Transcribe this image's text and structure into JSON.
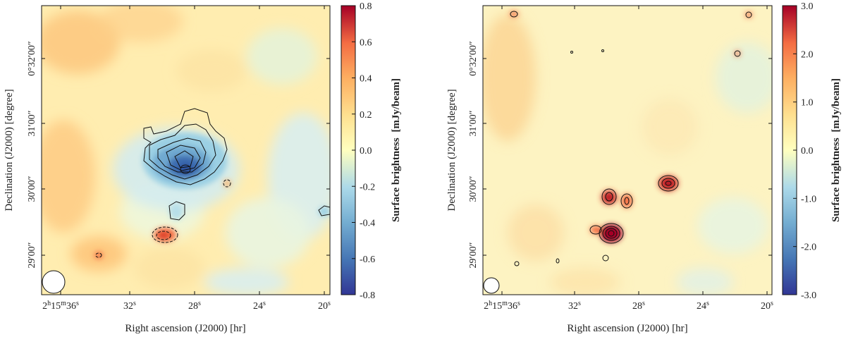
{
  "chart_data": [
    {
      "type": "heatmap",
      "name": "left-map",
      "xlabel": "Right ascension (J2000) [hr]",
      "ylabel": "Declination (J2000) [degree]",
      "x_ticks": [
        {
          "sup_h": "h",
          "sup_m": "m",
          "sup_s": "s",
          "h": "2",
          "m": "15",
          "s": "36",
          "label": "2h15m36s"
        },
        {
          "label": "32",
          "sup": "s"
        },
        {
          "label": "28",
          "sup": "s"
        },
        {
          "label": "24",
          "sup": "s"
        },
        {
          "label": "20",
          "sup": "s"
        }
      ],
      "y_ticks": [
        "0°32′00″",
        "31′00″",
        "30′00″",
        "29′00″"
      ],
      "y_tick_parts": [
        {
          "main": "0°32′00",
          "sec": "″"
        },
        {
          "main": "31′00",
          "sec": "″"
        },
        {
          "main": "30′00",
          "sec": "″"
        },
        {
          "main": "29′00",
          "sec": "″"
        }
      ],
      "colorbar": {
        "label": "Surface brightness",
        "unit": "[mJy/beam]",
        "range": [
          -0.8,
          0.8
        ],
        "ticks": [
          "0.8",
          "0.6",
          "0.4",
          "0.2",
          "0.0",
          "-0.2",
          "-0.4",
          "-0.6",
          "-0.8"
        ],
        "colormap": "RdYlBu_r"
      },
      "features": [
        "negative extended source near center",
        "compact positive source southwest",
        "beam ellipse lower-left"
      ]
    },
    {
      "type": "heatmap",
      "name": "right-map",
      "xlabel": "Right ascension (J2000) [hr]",
      "ylabel": "Declination (J2000) [degree]",
      "x_ticks": [
        {
          "label": "2h15m36s"
        },
        {
          "label": "32",
          "sup": "s"
        },
        {
          "label": "28",
          "sup": "s"
        },
        {
          "label": "24",
          "sup": "s"
        },
        {
          "label": "20",
          "sup": "s"
        }
      ],
      "y_ticks": [
        "0°32′00″",
        "31′00″",
        "30′00″",
        "29′00″"
      ],
      "colorbar": {
        "label": "Surface brightness",
        "unit": "[mJy/beam]",
        "range": [
          -3.0,
          3.0
        ],
        "ticks": [
          "3.0",
          "2.0",
          "1.0",
          "0.0",
          "-1.0",
          "-2.0",
          "-3.0"
        ],
        "colormap": "RdYlBu_r"
      },
      "features": [
        "several compact positive sources",
        "bright source south-center",
        "beam ellipse lower-left"
      ]
    }
  ],
  "colors": {
    "red": "#a50026",
    "orange": "#f46d43",
    "yellow": "#fee090",
    "pale": "#ffffbf",
    "lightblue": "#abd9e9",
    "blue": "#4575b4",
    "navy": "#313695"
  }
}
